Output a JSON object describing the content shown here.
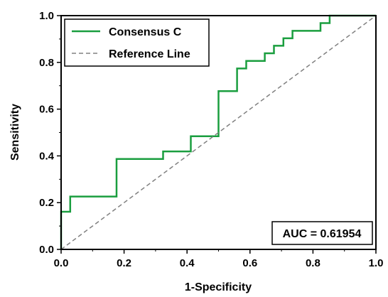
{
  "chart_data": {
    "type": "line",
    "xlabel": "1-Specificity",
    "ylabel": "Sensitivity",
    "xlim": [
      0.0,
      1.0
    ],
    "ylim": [
      0.0,
      1.0
    ],
    "x_ticks": [
      0.0,
      0.2,
      0.4,
      0.6,
      0.8,
      1.0
    ],
    "y_ticks": [
      0.0,
      0.2,
      0.4,
      0.6,
      0.8,
      1.0
    ],
    "x_tick_labels": [
      "0.0",
      "0.2",
      "0.4",
      "0.6",
      "0.8",
      "1.0"
    ],
    "y_tick_labels": [
      "0.0",
      "0.2",
      "0.4",
      "0.6",
      "0.8",
      "1.0"
    ],
    "grid": false,
    "legend_position": "top-left",
    "series": [
      {
        "name": "Consensus C",
        "color": "#1a9e3f",
        "style": "solid",
        "x": [
          0.0,
          0.0,
          0.029,
          0.029,
          0.176,
          0.176,
          0.324,
          0.324,
          0.412,
          0.412,
          0.5,
          0.5,
          0.559,
          0.559,
          0.588,
          0.588,
          0.647,
          0.647,
          0.676,
          0.676,
          0.706,
          0.706,
          0.735,
          0.735,
          0.824,
          0.824,
          0.853,
          0.853,
          1.0
        ],
        "y": [
          0.0,
          0.161,
          0.161,
          0.226,
          0.226,
          0.387,
          0.387,
          0.419,
          0.419,
          0.484,
          0.484,
          0.677,
          0.677,
          0.774,
          0.774,
          0.806,
          0.806,
          0.839,
          0.839,
          0.871,
          0.871,
          0.903,
          0.903,
          0.935,
          0.935,
          0.968,
          0.968,
          1.0,
          1.0
        ]
      },
      {
        "name": "Reference Line",
        "color": "#808080",
        "style": "dashed",
        "x": [
          0.0,
          1.0
        ],
        "y": [
          0.0,
          1.0
        ]
      }
    ],
    "annotations": [
      {
        "text": "AUC = 0.61954",
        "position": "bottom-right"
      }
    ]
  }
}
